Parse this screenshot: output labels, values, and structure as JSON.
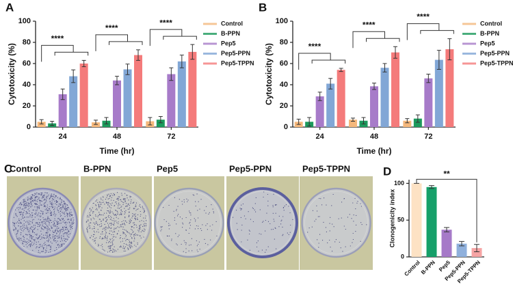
{
  "chart_data": [
    {
      "type": "grouped_bar",
      "panel": "A",
      "xlabel": "Time (hr)",
      "ylabel": "Cytotoxicity (%)",
      "categories": [
        "24",
        "48",
        "72"
      ],
      "ylim": [
        0,
        100
      ],
      "yticks": [
        0,
        20,
        40,
        60,
        80,
        100
      ],
      "annotations": [
        "****",
        "****",
        "****"
      ],
      "series": [
        {
          "name": "Control",
          "color": "#f5b87c",
          "values": [
            5,
            4.5,
            5.5
          ],
          "errors": [
            2,
            2,
            3.5
          ]
        },
        {
          "name": "B-PPN",
          "color": "#1c9a5c",
          "values": [
            3.5,
            6,
            7
          ],
          "errors": [
            2,
            3,
            3
          ]
        },
        {
          "name": "Pep5",
          "color": "#a77bc9",
          "values": [
            31,
            44,
            50
          ],
          "errors": [
            5,
            4,
            6
          ]
        },
        {
          "name": "Pep5-PPN",
          "color": "#82a7d6",
          "values": [
            48,
            54.5,
            62
          ],
          "errors": [
            6,
            5,
            6
          ]
        },
        {
          "name": "Pep5-TPPN",
          "color": "#f47b7b",
          "values": [
            60,
            68,
            71
          ],
          "errors": [
            3,
            5,
            7
          ]
        }
      ]
    },
    {
      "type": "grouped_bar",
      "panel": "B",
      "xlabel": "Time (hr)",
      "ylabel": "Cytotoxicity (%)",
      "categories": [
        "24",
        "48",
        "72"
      ],
      "ylim": [
        0,
        100
      ],
      "yticks": [
        0,
        20,
        40,
        60,
        80,
        100
      ],
      "annotations": [
        "****",
        "****",
        "****"
      ],
      "series": [
        {
          "name": "Control",
          "color": "#f5b87c",
          "values": [
            5,
            7,
            6
          ],
          "errors": [
            2.5,
            1.5,
            2
          ]
        },
        {
          "name": "B-PPN",
          "color": "#1c9a5c",
          "values": [
            5,
            6,
            8
          ],
          "errors": [
            4,
            3,
            3.5
          ]
        },
        {
          "name": "Pep5",
          "color": "#a77bc9",
          "values": [
            29,
            38.5,
            46
          ],
          "errors": [
            4,
            3,
            4
          ]
        },
        {
          "name": "Pep5-PPN",
          "color": "#82a7d6",
          "values": [
            41,
            56,
            63.5
          ],
          "errors": [
            5,
            4,
            9
          ]
        },
        {
          "name": "Pep5-TPPN",
          "color": "#f47b7b",
          "values": [
            54,
            70.5,
            73.5
          ],
          "errors": [
            1.5,
            5.5,
            10
          ]
        }
      ]
    },
    {
      "type": "bar",
      "panel": "D",
      "ylabel": "Clonogenicity index",
      "annotation": "**",
      "categories": [
        "Control",
        "B-PPN",
        "Pep5",
        "Pep5-PPN",
        "Pep5-TPPN"
      ],
      "values": [
        100,
        95,
        37,
        18,
        12
      ],
      "errors": [
        0,
        2,
        3,
        3,
        5
      ],
      "colors": [
        "#fde2c4",
        "#17a06a",
        "#a67ac8",
        "#8fb0dc",
        "#f6a4a4"
      ],
      "ylim": [
        0,
        105
      ],
      "yticks": [
        0,
        50,
        100
      ]
    }
  ],
  "panel_c": {
    "panel": "C",
    "labels": [
      "Control",
      "B-PPN",
      "Pep5",
      "Pep5-PPN",
      "Pep5-TPPN"
    ]
  }
}
